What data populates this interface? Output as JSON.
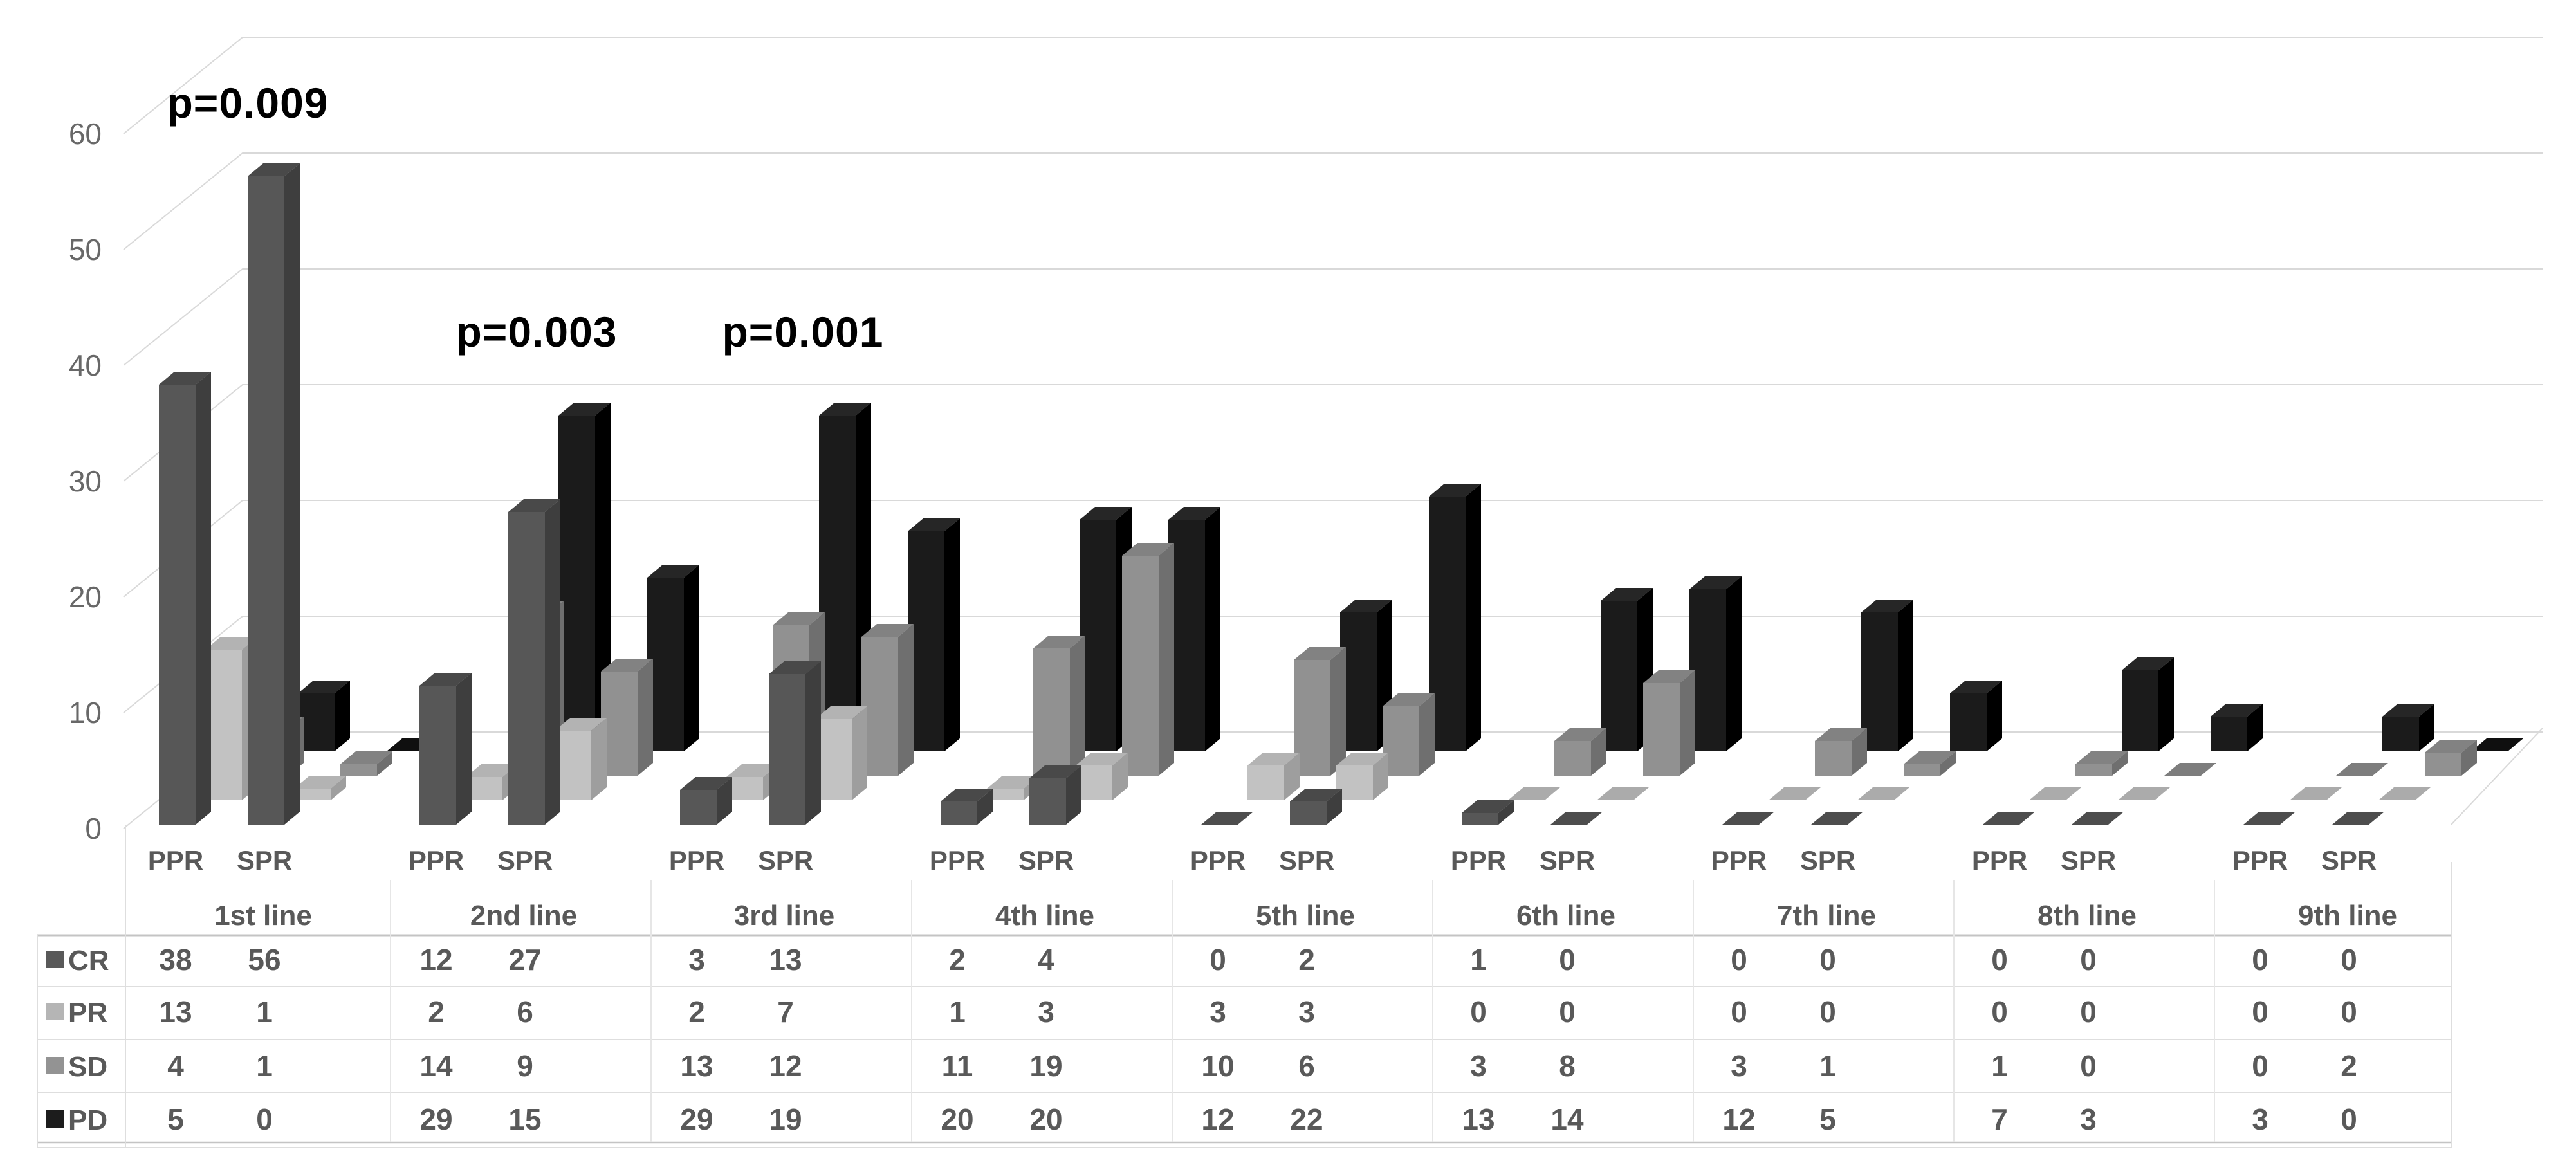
{
  "chart_data": {
    "type": "bar",
    "variant": "3d-clustered-column",
    "title": "",
    "value_axis": {
      "min": 0,
      "max": 60,
      "step": 10,
      "tick_labels": [
        "0",
        "10",
        "20",
        "30",
        "40",
        "50",
        "60"
      ]
    },
    "category_groups": [
      "1st line",
      "2nd line",
      "3rd line",
      "4th line",
      "5th line",
      "6th line",
      "7th line",
      "8th line",
      "9th line"
    ],
    "subcategories": [
      "PPR",
      "SPR"
    ],
    "series": [
      {
        "name": "CR",
        "values": [
          [
            38,
            56
          ],
          [
            12,
            27
          ],
          [
            3,
            13
          ],
          [
            2,
            4
          ],
          [
            0,
            2
          ],
          [
            1,
            0
          ],
          [
            0,
            0
          ],
          [
            0,
            0
          ],
          [
            0,
            0
          ]
        ],
        "colors": {
          "front": "#575757",
          "side": "#3e3e3e",
          "top": "#494949",
          "flat": "#4d4d4d",
          "legend": "#595959"
        }
      },
      {
        "name": "PR",
        "values": [
          [
            13,
            1
          ],
          [
            2,
            6
          ],
          [
            2,
            7
          ],
          [
            1,
            3
          ],
          [
            3,
            3
          ],
          [
            0,
            0
          ],
          [
            0,
            0
          ],
          [
            0,
            0
          ],
          [
            0,
            0
          ]
        ],
        "colors": {
          "front": "#c2c2c2",
          "side": "#9e9e9e",
          "top": "#b3b3b3",
          "flat": "#ababab",
          "legend": "#b5b5b5"
        }
      },
      {
        "name": "SD",
        "values": [
          [
            4,
            1
          ],
          [
            14,
            9
          ],
          [
            13,
            12
          ],
          [
            11,
            19
          ],
          [
            10,
            6
          ],
          [
            3,
            8
          ],
          [
            3,
            1
          ],
          [
            1,
            0
          ],
          [
            0,
            2
          ]
        ],
        "colors": {
          "front": "#919191",
          "side": "#6f6f6f",
          "top": "#828282",
          "flat": "#7d7d7d",
          "legend": "#939393"
        }
      },
      {
        "name": "PD",
        "values": [
          [
            5,
            0
          ],
          [
            29,
            15
          ],
          [
            29,
            19
          ],
          [
            20,
            20
          ],
          [
            12,
            22
          ],
          [
            13,
            14
          ],
          [
            12,
            5
          ],
          [
            7,
            3
          ],
          [
            3,
            0
          ]
        ],
        "colors": {
          "front": "#1b1b1b",
          "side": "#000000",
          "top": "#262626",
          "flat": "#0f0f0f",
          "legend": "#1c1c1c"
        }
      }
    ],
    "annotations": [
      {
        "text": "p=0.009",
        "x": 385,
        "y": 160
      },
      {
        "text": "p=0.003",
        "x": 834,
        "y": 516
      },
      {
        "text": "p=0.001",
        "x": 1248,
        "y": 516
      }
    ],
    "grid": true,
    "legend_position": "data-table-left-column",
    "data_table_shown": true
  },
  "styles": {
    "text_color": "#595959",
    "tick_color": "#686868",
    "grid_color": "#d9d9d9",
    "table_line_color": "#c4c4c4",
    "table_line_light": "#dedede",
    "background": "#ffffff",
    "annotation_color": "#000000"
  }
}
